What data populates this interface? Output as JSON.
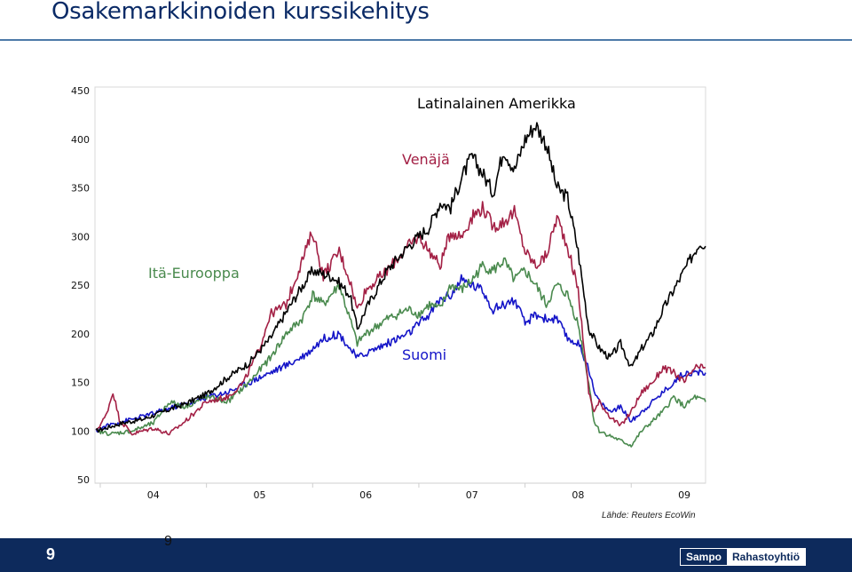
{
  "header": {
    "title": "Osakemarkkinoiden kurssikehitys"
  },
  "footer": {
    "page": "9",
    "page_small": "9",
    "logo_left": "Sampo",
    "logo_right": "Rahastoyhtiö"
  },
  "source": "Lähde: Reuters EcoWin",
  "colors": {
    "latin": "#000000",
    "russia": "#a32045",
    "east": "#4a8a4e",
    "finland": "#1515c8",
    "title": "#0a2a66",
    "footer": "#0d2a5c"
  },
  "chart_data": {
    "type": "line",
    "title": "",
    "xlabel": "",
    "ylabel": "",
    "ylim": [
      50,
      450
    ],
    "yticks": [
      "450",
      "400",
      "350",
      "300",
      "250",
      "200",
      "150",
      "100",
      "50"
    ],
    "xticks": [
      "04",
      "05",
      "06",
      "07",
      "08",
      "09"
    ],
    "xlim": [
      2003.95,
      2009.7
    ],
    "annotations": [
      "Latinalainen Amerikka",
      "Venäjä",
      "Itä-Eurooppa",
      "Suomi"
    ],
    "series": [
      {
        "name": "Latinalainen Amerikka",
        "color": "#000000",
        "x": [
          2003.96,
          2004.2,
          2004.4,
          2004.6,
          2004.8,
          2005.0,
          2005.2,
          2005.4,
          2005.6,
          2005.75,
          2005.85,
          2006.0,
          2006.2,
          2006.35,
          2006.42,
          2006.5,
          2006.7,
          2006.9,
          2007.0,
          2007.1,
          2007.2,
          2007.3,
          2007.4,
          2007.5,
          2007.6,
          2007.7,
          2007.8,
          2007.9,
          2008.0,
          2008.1,
          2008.2,
          2008.3,
          2008.4,
          2008.5,
          2008.6,
          2008.7,
          2008.8,
          2008.9,
          2009.0,
          2009.1,
          2009.2,
          2009.3,
          2009.4,
          2009.5,
          2009.6,
          2009.65,
          2009.7
        ],
        "y": [
          100,
          108,
          112,
          120,
          128,
          138,
          155,
          170,
          195,
          222,
          240,
          265,
          258,
          240,
          205,
          225,
          265,
          290,
          300,
          310,
          335,
          330,
          360,
          382,
          365,
          345,
          390,
          368,
          400,
          415,
          395,
          350,
          340,
          285,
          205,
          185,
          175,
          190,
          165,
          185,
          200,
          225,
          245,
          265,
          285,
          295,
          290
        ]
      },
      {
        "name": "Venäjä",
        "color": "#a32045",
        "x": [
          2003.96,
          2004.05,
          2004.12,
          2004.18,
          2004.3,
          2004.4,
          2004.5,
          2004.65,
          2004.8,
          2004.9,
          2005.0,
          2005.2,
          2005.35,
          2005.5,
          2005.6,
          2005.75,
          2005.9,
          2006.0,
          2006.1,
          2006.25,
          2006.35,
          2006.42,
          2006.5,
          2006.7,
          2006.9,
          2007.0,
          2007.1,
          2007.2,
          2007.3,
          2007.4,
          2007.5,
          2007.6,
          2007.7,
          2007.8,
          2007.9,
          2008.0,
          2008.1,
          2008.2,
          2008.3,
          2008.4,
          2008.5,
          2008.6,
          2008.65,
          2008.7,
          2008.8,
          2008.9,
          2009.0,
          2009.1,
          2009.2,
          2009.3,
          2009.4,
          2009.5,
          2009.6,
          2009.7
        ],
        "y": [
          100,
          115,
          140,
          112,
          97,
          100,
          103,
          97,
          110,
          120,
          130,
          135,
          150,
          185,
          220,
          230,
          275,
          305,
          260,
          285,
          255,
          225,
          245,
          265,
          290,
          300,
          285,
          270,
          305,
          300,
          320,
          330,
          310,
          315,
          325,
          285,
          270,
          280,
          320,
          290,
          245,
          140,
          120,
          130,
          115,
          105,
          120,
          140,
          150,
          165,
          160,
          150,
          165,
          165
        ]
      },
      {
        "name": "Itä-Eurooppa",
        "color": "#4a8a4e",
        "x": [
          2003.96,
          2004.1,
          2004.3,
          2004.5,
          2004.65,
          2004.8,
          2005.0,
          2005.2,
          2005.4,
          2005.6,
          2005.75,
          2005.9,
          2006.0,
          2006.1,
          2006.25,
          2006.35,
          2006.42,
          2006.5,
          2006.7,
          2006.9,
          2007.0,
          2007.1,
          2007.2,
          2007.3,
          2007.4,
          2007.5,
          2007.6,
          2007.7,
          2007.8,
          2007.9,
          2008.0,
          2008.1,
          2008.2,
          2008.3,
          2008.4,
          2008.5,
          2008.6,
          2008.65,
          2008.7,
          2008.8,
          2008.9,
          2009.0,
          2009.1,
          2009.2,
          2009.3,
          2009.4,
          2009.5,
          2009.6,
          2009.7
        ],
        "y": [
          100,
          97,
          100,
          108,
          130,
          125,
          135,
          130,
          150,
          175,
          200,
          215,
          240,
          230,
          250,
          215,
          190,
          200,
          215,
          225,
          220,
          230,
          225,
          250,
          245,
          255,
          270,
          265,
          275,
          255,
          265,
          250,
          230,
          250,
          240,
          210,
          150,
          110,
          100,
          95,
          90,
          85,
          100,
          110,
          120,
          135,
          125,
          135,
          130
        ]
      },
      {
        "name": "Suomi",
        "color": "#1515c8",
        "x": [
          2003.96,
          2004.1,
          2004.3,
          2004.5,
          2004.7,
          2004.9,
          2005.0,
          2005.2,
          2005.4,
          2005.6,
          2005.8,
          2005.95,
          2006.1,
          2006.25,
          2006.35,
          2006.42,
          2006.5,
          2006.7,
          2006.9,
          2007.0,
          2007.1,
          2007.2,
          2007.3,
          2007.4,
          2007.5,
          2007.6,
          2007.7,
          2007.8,
          2007.9,
          2008.0,
          2008.1,
          2008.2,
          2008.3,
          2008.4,
          2008.5,
          2008.6,
          2008.65,
          2008.7,
          2008.8,
          2008.9,
          2009.0,
          2009.1,
          2009.2,
          2009.3,
          2009.4,
          2009.5,
          2009.6,
          2009.7
        ],
        "y": [
          100,
          107,
          112,
          118,
          125,
          130,
          135,
          140,
          150,
          160,
          170,
          180,
          195,
          200,
          185,
          175,
          180,
          190,
          200,
          210,
          220,
          235,
          240,
          255,
          250,
          245,
          225,
          230,
          235,
          210,
          220,
          215,
          215,
          195,
          190,
          165,
          140,
          130,
          120,
          125,
          110,
          120,
          130,
          140,
          150,
          160,
          160,
          160
        ]
      }
    ]
  }
}
